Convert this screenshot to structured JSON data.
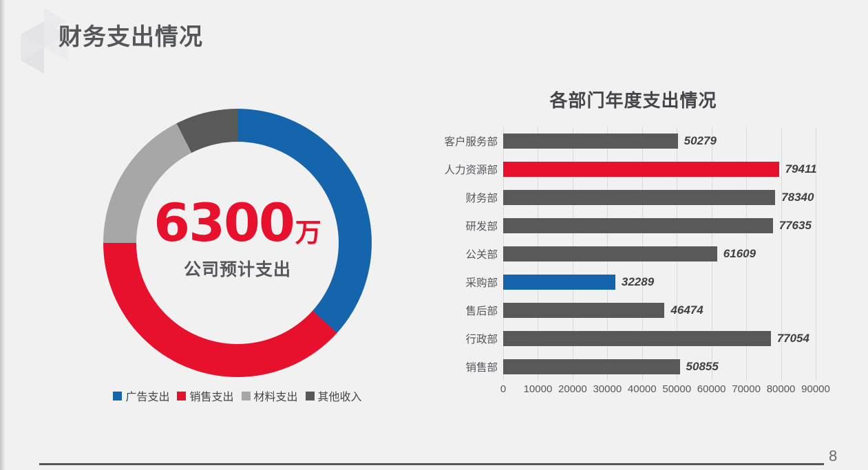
{
  "slide": {
    "title": "财务支出情况",
    "page_number": "8"
  },
  "theme": {
    "accent_blue": "#1565ad",
    "accent_red": "#e8112d",
    "gray_light": "#a7a7a7",
    "gray_dark": "#595959",
    "background": "#f1f1f2",
    "grid_color": "#d9d9da"
  },
  "chart_data": [
    {
      "type": "pie",
      "subtype": "donut",
      "center_value": "6300",
      "center_unit": "万",
      "center_label": "公司预计支出",
      "labels": [
        "广告支出",
        "销售支出",
        "材料支出",
        "其他收入"
      ],
      "values_percent": [
        36.7,
        38.3,
        17.5,
        7.5
      ],
      "colors": [
        "#1565ad",
        "#e8112d",
        "#a7a7a7",
        "#595959"
      ],
      "start_angle_deg": 0,
      "legend_position": "bottom"
    },
    {
      "type": "bar",
      "orientation": "horizontal",
      "title": "各部门年度支出情况",
      "categories": [
        "客户服务部",
        "人力资源部",
        "财务部",
        "研发部",
        "公关部",
        "采购部",
        "售后部",
        "行政部",
        "销售部"
      ],
      "values": [
        50279,
        79411,
        78340,
        77635,
        61609,
        32289,
        46474,
        77054,
        50855
      ],
      "bar_colors": [
        "#595959",
        "#e8112d",
        "#595959",
        "#595959",
        "#595959",
        "#1565ad",
        "#595959",
        "#595959",
        "#595959"
      ],
      "xlabel": "",
      "ylabel": "",
      "xlim": [
        0,
        90000
      ],
      "x_ticks": [
        0,
        10000,
        20000,
        30000,
        40000,
        50000,
        60000,
        70000,
        80000,
        90000
      ],
      "grid": true,
      "data_labels": true,
      "legend": "none"
    }
  ]
}
